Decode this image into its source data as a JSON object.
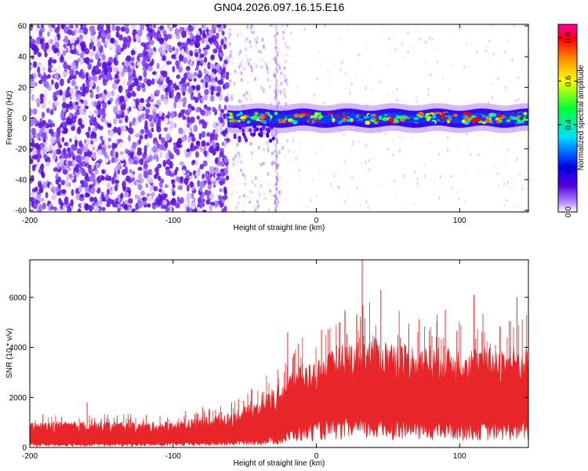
{
  "title": "GN04.2026.097.16.15.E16",
  "chart_data": [
    {
      "type": "heatmap",
      "xlabel": "Height of straight line (km)",
      "ylabel": "Frequency (Hz)",
      "xlim": [
        -200,
        148
      ],
      "ylim": [
        -61,
        61
      ],
      "x_ticks": [
        "-200",
        "-100",
        "0",
        "100"
      ],
      "y_ticks": [
        "-60",
        "-40",
        "-20",
        "0",
        "20",
        "40",
        "60"
      ],
      "colorbar": {
        "label": "Normalized spectral amplitude",
        "range": [
          0,
          0.86
        ],
        "ticks": [
          "0.0",
          "0.2",
          "0.4",
          "0.6",
          "0.8"
        ],
        "colors": [
          "#ffffff",
          "#6a00e0",
          "#0000ff",
          "#00ffff",
          "#00ff00",
          "#ffff00",
          "#ff8800",
          "#ff0000",
          "#ff00aa"
        ]
      },
      "features": [
        {
          "region": "noise",
          "x_from": -200,
          "x_to": -62,
          "frequency_from": -61,
          "frequency_to": 61
        },
        {
          "region": "signal",
          "x_from": -62,
          "x_to": 148,
          "frequency_center": 0,
          "frequency_halfwidth": 5,
          "peak_amplitude": 0.86
        }
      ]
    },
    {
      "type": "line",
      "xlabel": "Height of straight line (km)",
      "ylabel": "SNR (10 * v/v)",
      "xlim": [
        -200,
        148
      ],
      "ylim": [
        0,
        7500
      ],
      "x_ticks": [
        "-200",
        "-100",
        "0",
        "100"
      ],
      "y_ticks": [
        "0",
        "2000",
        "4000",
        "6000"
      ],
      "color": "#e8262a",
      "envelope": [
        {
          "x": -200,
          "low": 150,
          "high": 1000
        },
        {
          "x": -160,
          "low": 150,
          "high": 1050
        },
        {
          "x": -120,
          "low": 150,
          "high": 1000
        },
        {
          "x": -90,
          "low": 170,
          "high": 1100
        },
        {
          "x": -60,
          "low": 220,
          "high": 1400
        },
        {
          "x": -40,
          "low": 300,
          "high": 1900
        },
        {
          "x": -25,
          "low": 400,
          "high": 2600
        },
        {
          "x": -15,
          "low": 700,
          "high": 3200
        },
        {
          "x": 0,
          "low": 900,
          "high": 3500
        },
        {
          "x": 20,
          "low": 1000,
          "high": 4200
        },
        {
          "x": 40,
          "low": 1000,
          "high": 4400
        },
        {
          "x": 60,
          "low": 1000,
          "high": 4200
        },
        {
          "x": 80,
          "low": 900,
          "high": 4000
        },
        {
          "x": 100,
          "low": 900,
          "high": 4000
        },
        {
          "x": 120,
          "low": 900,
          "high": 4000
        },
        {
          "x": 148,
          "low": 900,
          "high": 4000
        }
      ],
      "peaks": [
        {
          "x": -160,
          "y": 1800
        },
        {
          "x": -20,
          "y": 4600
        },
        {
          "x": 20,
          "y": 5400
        },
        {
          "x": 32,
          "y": 7500
        },
        {
          "x": 45,
          "y": 6300
        },
        {
          "x": 90,
          "y": 5500
        },
        {
          "x": 110,
          "y": 6100
        },
        {
          "x": 140,
          "y": 6000
        }
      ]
    }
  ]
}
